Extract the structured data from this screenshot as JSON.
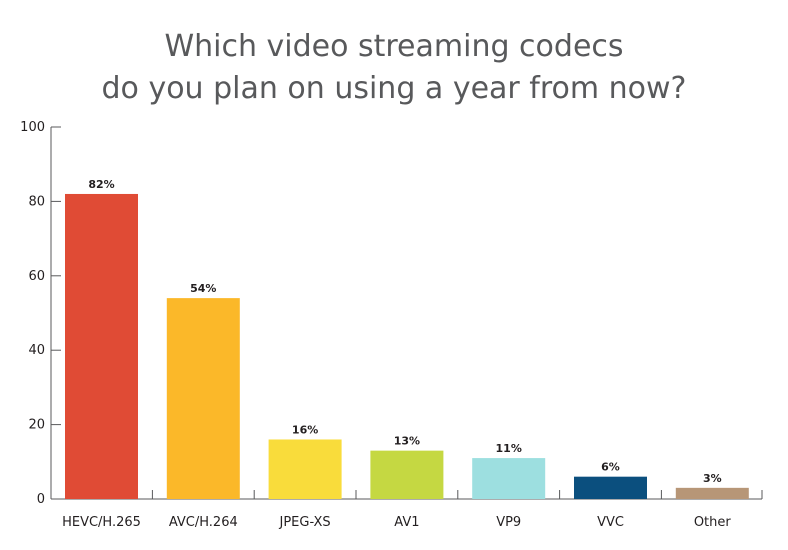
{
  "title": {
    "line1": "Which video streaming codecs",
    "line2": "do you plan on using a year from now?"
  },
  "chart_data": {
    "type": "bar",
    "title": "Which video streaming codecs do you plan on using a year from now?",
    "categories": [
      "HEVC/H.265",
      "AVC/H.264",
      "JPEG-XS",
      "AV1",
      "VP9",
      "VVC",
      "Other"
    ],
    "values": [
      82,
      54,
      16,
      13,
      11,
      6,
      3
    ],
    "data_labels": [
      "82%",
      "54%",
      "16%",
      "13%",
      "11%",
      "6%",
      "3%"
    ],
    "colors": [
      "#e04b35",
      "#fbb829",
      "#f9dc3b",
      "#c5d842",
      "#9ddfe0",
      "#0b4f7e",
      "#b79677"
    ],
    "ylim": [
      0,
      100
    ],
    "yticks": [
      0,
      20,
      40,
      60,
      80,
      100
    ],
    "xlabel": "",
    "ylabel": "",
    "grid": false,
    "axis_color": "#58595b",
    "text_color": "#231f20"
  }
}
